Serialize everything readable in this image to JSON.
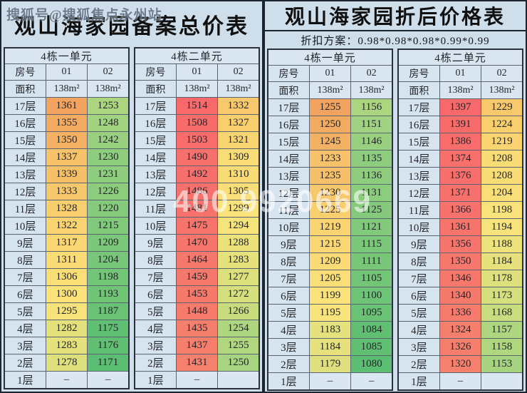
{
  "watermarks": {
    "top_left": "搜狐号@搜狐焦点永州站",
    "center": "400 9920669"
  },
  "shared": {
    "room_label": "房号",
    "area_label": "面积",
    "empty_value": "–",
    "floors": [
      "17层",
      "16层",
      "15层",
      "14层",
      "13层",
      "12层",
      "11层",
      "10层",
      "9层",
      "8层",
      "7层",
      "6层",
      "5层",
      "4层",
      "3层",
      "2层",
      "1层"
    ]
  },
  "left_panel": {
    "title": "观山海家园备案总价表",
    "color_scale": {
      "na_bg": "#DAE7F2",
      "stops": [
        [
          1171,
          "#5CBE72"
        ],
        [
          1245,
          "#9BD181"
        ],
        [
          1272,
          "#D5DF7D"
        ],
        [
          1298,
          "#FBE47B"
        ],
        [
          1325,
          "#F9D26F"
        ],
        [
          1361,
          "#F2A35F"
        ],
        [
          1431,
          "#F5806D"
        ],
        [
          1514,
          "#F8696B"
        ]
      ]
    },
    "units": [
      {
        "name": "4栋一单元",
        "rooms": [
          "01",
          "02"
        ],
        "areas": [
          "138m²",
          "138m²"
        ],
        "prices": [
          [
            1361,
            1253
          ],
          [
            1355,
            1248
          ],
          [
            1350,
            1242
          ],
          [
            1337,
            1230
          ],
          [
            1339,
            1231
          ],
          [
            1333,
            1226
          ],
          [
            1328,
            1220
          ],
          [
            1322,
            1215
          ],
          [
            1317,
            1209
          ],
          [
            1311,
            1204
          ],
          [
            1306,
            1198
          ],
          [
            1300,
            1193
          ],
          [
            1295,
            1187
          ],
          [
            1282,
            1175
          ],
          [
            1283,
            1176
          ],
          [
            1278,
            1171
          ],
          [
            "–",
            "–"
          ]
        ]
      },
      {
        "name": "4栋二单元",
        "rooms": [
          "01",
          "02"
        ],
        "areas": [
          "138m²",
          "138m²"
        ],
        "prices": [
          [
            1514,
            1332
          ],
          [
            1508,
            1327
          ],
          [
            1503,
            1321
          ],
          [
            1490,
            1309
          ],
          [
            1492,
            1310
          ],
          [
            1486,
            1305
          ],
          [
            1481,
            1299
          ],
          [
            1475,
            1294
          ],
          [
            1470,
            1288
          ],
          [
            1464,
            1283
          ],
          [
            1459,
            1277
          ],
          [
            1453,
            1272
          ],
          [
            1448,
            1266
          ],
          [
            1435,
            1254
          ],
          [
            1437,
            1255
          ],
          [
            1431,
            1250
          ],
          [
            "–",
            ""
          ]
        ]
      }
    ]
  },
  "right_panel": {
    "title": "观山海家园折后价格表",
    "subtitle": "折扣方案：0.98*0.98*0.98*0.99*0.99",
    "color_scale": {
      "na_bg": "#DAE7F2",
      "stops": [
        [
          1080,
          "#5CBE72"
        ],
        [
          1149,
          "#9BD181"
        ],
        [
          1173,
          "#D5DF7D"
        ],
        [
          1197,
          "#FBE47B"
        ],
        [
          1222,
          "#F9D26F"
        ],
        [
          1255,
          "#F2A35F"
        ],
        [
          1320,
          "#F5806D"
        ],
        [
          1397,
          "#F8696B"
        ]
      ]
    },
    "units": [
      {
        "name": "4栋一单元",
        "rooms": [
          "01",
          "02"
        ],
        "areas": [
          "138m²",
          "138m²"
        ],
        "prices": [
          [
            1255,
            1156
          ],
          [
            1250,
            1151
          ],
          [
            1245,
            1146
          ],
          [
            1233,
            1135
          ],
          [
            1235,
            1136
          ],
          [
            1230,
            1131
          ],
          [
            1225,
            1125
          ],
          [
            1219,
            1121
          ],
          [
            1215,
            1115
          ],
          [
            1209,
            1111
          ],
          [
            1205,
            1105
          ],
          [
            1199,
            1100
          ],
          [
            1195,
            1095
          ],
          [
            1183,
            1084
          ],
          [
            1184,
            1085
          ],
          [
            1179,
            1080
          ],
          [
            "–",
            "–"
          ]
        ]
      },
      {
        "name": "4栋二单元",
        "rooms": [
          "01",
          "02"
        ],
        "areas": [
          "138m²",
          "138m²"
        ],
        "prices": [
          [
            1397,
            1229
          ],
          [
            1391,
            1224
          ],
          [
            1386,
            1219
          ],
          [
            1374,
            1208
          ],
          [
            1376,
            1208
          ],
          [
            1371,
            1204
          ],
          [
            1366,
            1198
          ],
          [
            1361,
            1194
          ],
          [
            1356,
            1188
          ],
          [
            1350,
            1184
          ],
          [
            1346,
            1178
          ],
          [
            1340,
            1173
          ],
          [
            1336,
            1168
          ],
          [
            1324,
            1157
          ],
          [
            1326,
            1158
          ],
          [
            1320,
            1153
          ],
          [
            "–",
            ""
          ]
        ]
      }
    ]
  }
}
